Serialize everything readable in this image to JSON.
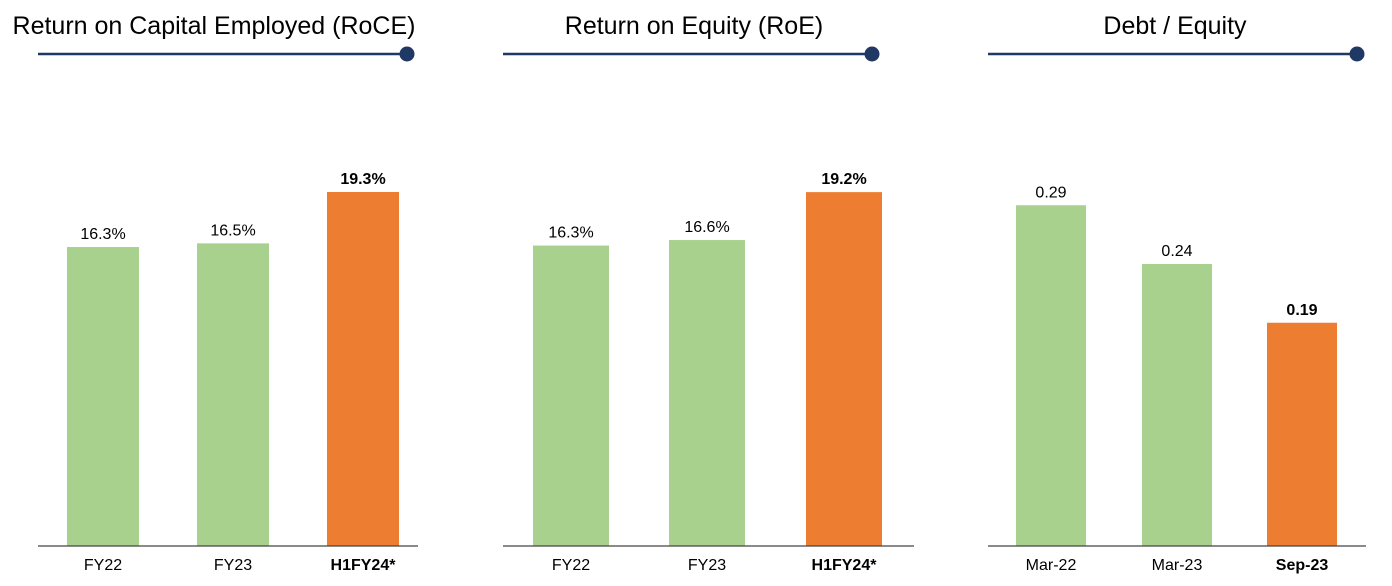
{
  "colors": {
    "normal_bar": "#a9d18e",
    "highlight_bar": "#ed7d31",
    "rule": "#203864",
    "axis": "#444444",
    "text": "#000000"
  },
  "chart_data": [
    {
      "type": "bar",
      "title": "Return on Capital Employed (RoCE)",
      "categories": [
        "FY22",
        "FY23",
        "H1FY24*"
      ],
      "values": [
        16.3,
        16.5,
        19.3
      ],
      "value_labels": [
        "16.3%",
        "16.5%",
        "19.3%"
      ],
      "highlight": [
        false,
        false,
        true
      ],
      "ylim": [
        0,
        20.5
      ],
      "xlabel": "",
      "ylabel": "",
      "grid": false,
      "legend": "none"
    },
    {
      "type": "bar",
      "title": "Return on Equity (RoE)",
      "categories": [
        "FY22",
        "FY23",
        "H1FY24*"
      ],
      "values": [
        16.3,
        16.6,
        19.2
      ],
      "value_labels": [
        "16.3%",
        "16.6%",
        "19.2%"
      ],
      "highlight": [
        false,
        false,
        true
      ],
      "ylim": [
        0,
        20.4
      ],
      "xlabel": "",
      "ylabel": "",
      "grid": false,
      "legend": "none"
    },
    {
      "type": "bar",
      "title": "Debt / Equity",
      "categories": [
        "Mar-22",
        "Mar-23",
        "Sep-23"
      ],
      "values": [
        0.29,
        0.24,
        0.19
      ],
      "value_labels": [
        "0.29",
        "0.24",
        "0.19"
      ],
      "highlight": [
        false,
        false,
        true
      ],
      "ylim": [
        0,
        0.32
      ],
      "xlabel": "",
      "ylabel": "",
      "grid": false,
      "legend": "none"
    }
  ]
}
